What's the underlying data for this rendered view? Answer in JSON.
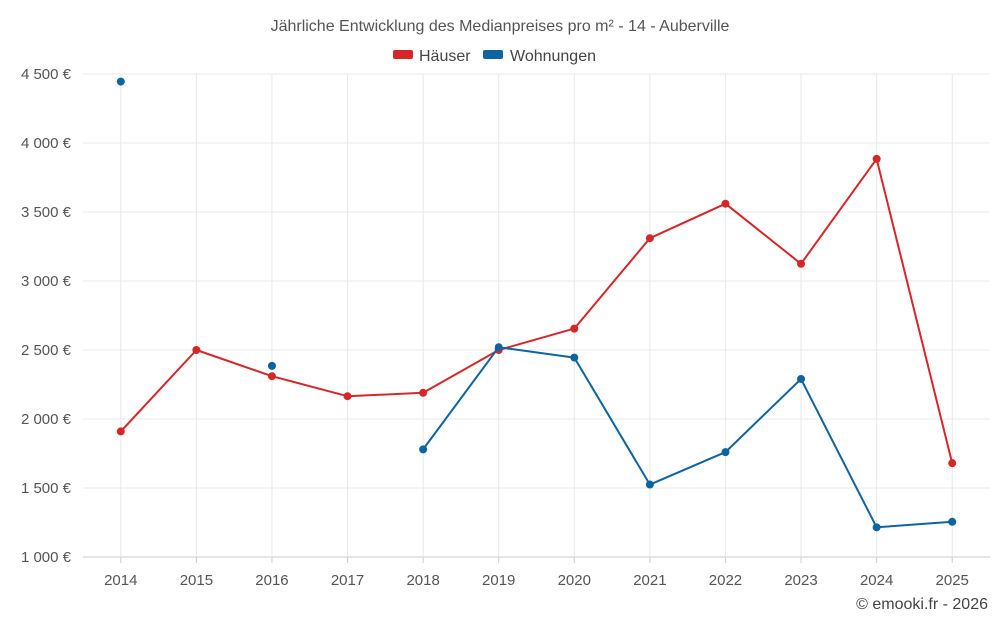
{
  "chart_data": {
    "type": "line",
    "title": "Jährliche Entwicklung des Medianpreises pro m² - 14 - Auberville",
    "categories": [
      "2014",
      "2015",
      "2016",
      "2017",
      "2018",
      "2019",
      "2020",
      "2021",
      "2022",
      "2023",
      "2024",
      "2025"
    ],
    "ylim": [
      1000,
      4500
    ],
    "yticks": [
      1000,
      1500,
      2000,
      2500,
      3000,
      3500,
      4000,
      4500
    ],
    "ytick_labels": [
      "1 000 €",
      "1 500 €",
      "2 000 €",
      "2 500 €",
      "3 000 €",
      "3 500 €",
      "4 000 €",
      "4 500 €"
    ],
    "grid": true,
    "legend_position": "top-center",
    "series": [
      {
        "name": "Häuser",
        "color": "#d62728",
        "values": [
          1910,
          2500,
          2310,
          2165,
          2190,
          2500,
          2655,
          3310,
          3560,
          3125,
          3885,
          1680
        ]
      },
      {
        "name": "Wohnungen",
        "color": "#0e64a0",
        "values": [
          4445,
          null,
          2385,
          null,
          1780,
          2520,
          2445,
          1525,
          1760,
          2290,
          1215,
          1255
        ]
      }
    ],
    "credit": "© emooki.fr - 2026"
  }
}
